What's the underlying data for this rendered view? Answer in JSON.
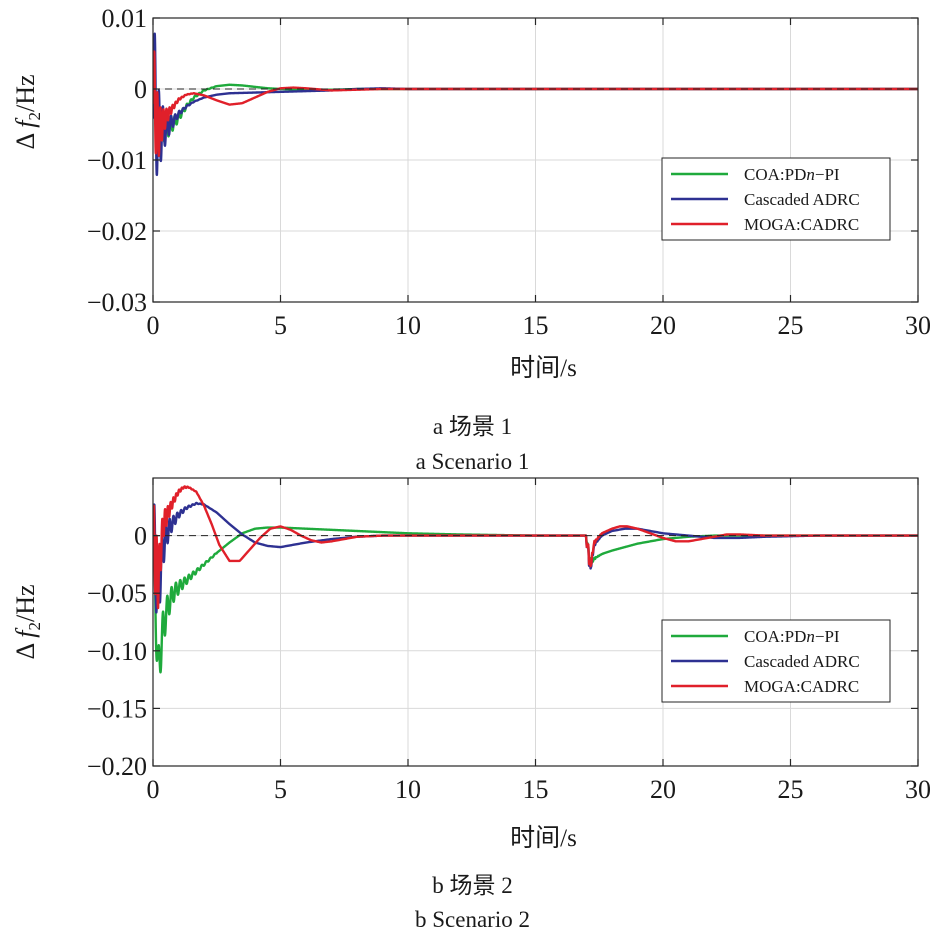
{
  "figure": {
    "panels": [
      {
        "caption_cn": "a  场景 1",
        "caption_en": "a  Scenario 1",
        "ylabel_delta": "Δ",
        "ylabel_f": "f",
        "ylabel_sub": "2",
        "ylabel_unit": "/Hz",
        "xlabel": "时间/s"
      },
      {
        "caption_cn": "b  场景 2",
        "caption_en": "b  Scenario 2",
        "ylabel_delta": "Δ",
        "ylabel_f": "f",
        "ylabel_sub": "2",
        "ylabel_unit": "/Hz",
        "xlabel": "时间/s"
      }
    ]
  },
  "chart_data": [
    {
      "type": "line",
      "xlabel": "时间/s",
      "ylabel": "Δf2/Hz",
      "xlim": [
        0,
        30
      ],
      "ylim": [
        -0.03,
        0.01
      ],
      "xticks": [
        0,
        5,
        10,
        15,
        20,
        25,
        30
      ],
      "xtick_labels": [
        "0",
        "5",
        "10",
        "15",
        "20",
        "25",
        "30"
      ],
      "yticks": [
        0.01,
        0,
        -0.01,
        -0.02,
        -0.03
      ],
      "ytick_labels": [
        "0.01",
        "0",
        "−0.01",
        "−0.02",
        "−0.03"
      ],
      "grid": true,
      "zero_line": true,
      "legend_position": "center-right",
      "series": [
        {
          "name": "COA:PDn−PI",
          "legend_parts": [
            "COA:PD",
            "n",
            "−PI"
          ],
          "color": "#1faa3c",
          "osc": {
            "amp": 0.0055,
            "period": 0.16,
            "decay": 0.45,
            "t0": 0.07
          },
          "x": [
            0,
            0.2,
            0.5,
            0.8,
            1.0,
            1.3,
            1.6,
            2.0,
            2.5,
            3.0,
            3.5,
            4.0,
            4.5,
            5.0,
            6.0,
            7.0,
            8.0,
            9.0,
            10,
            15,
            20,
            25,
            30
          ],
          "y": [
            0,
            -0.005,
            -0.0055,
            -0.0048,
            -0.004,
            -0.0025,
            -0.0012,
            -0.0002,
            0.0004,
            0.0006,
            0.0005,
            0.0003,
            0.0001,
            0.0,
            -0.0001,
            -0.0001,
            0.0,
            0.0,
            0.0,
            0.0,
            0.0,
            0.0,
            0.0
          ]
        },
        {
          "name": "Cascaded ADRC",
          "color": "#2e3192",
          "osc": {
            "amp": 0.013,
            "period": 0.16,
            "decay": 0.28,
            "t0": 0.05
          },
          "x": [
            0,
            0.2,
            0.5,
            0.8,
            1.0,
            1.3,
            1.6,
            2.0,
            2.5,
            3.0,
            4.0,
            5.0,
            6.0,
            7.0,
            8.0,
            9.0,
            10,
            15,
            20,
            25,
            30
          ],
          "y": [
            0,
            -0.006,
            -0.0055,
            -0.0045,
            -0.0035,
            -0.0025,
            -0.0018,
            -0.0012,
            -0.0008,
            -0.0006,
            -0.0005,
            -0.0004,
            -0.0003,
            -0.0002,
            0.0,
            0.0001,
            0.0,
            0.0,
            0.0,
            0.0,
            0.0
          ]
        },
        {
          "name": "MOGA:CADRC",
          "color": "#e0202a",
          "osc": {
            "amp": 0.009,
            "period": 0.12,
            "decay": 0.25,
            "t0": 0.04
          },
          "x": [
            0,
            0.2,
            0.5,
            0.8,
            1.0,
            1.3,
            1.6,
            2.0,
            2.5,
            3.0,
            3.5,
            4.0,
            4.5,
            5.0,
            5.5,
            6.0,
            7.0,
            8.0,
            9.0,
            10,
            15,
            20,
            25,
            30
          ],
          "y": [
            0,
            -0.006,
            -0.004,
            -0.0025,
            -0.0015,
            -0.0008,
            -0.0006,
            -0.0009,
            -0.0016,
            -0.0022,
            -0.002,
            -0.0012,
            -0.0004,
            0.0001,
            0.0002,
            0.0001,
            -0.0002,
            -0.0001,
            0.0,
            0.0,
            0.0,
            0.0,
            0.0,
            0.0
          ]
        }
      ]
    },
    {
      "type": "line",
      "xlabel": "时间/s",
      "ylabel": "Δf2/Hz",
      "xlim": [
        0,
        30
      ],
      "ylim": [
        -0.2,
        0.05
      ],
      "xticks": [
        0,
        5,
        10,
        15,
        20,
        25,
        30
      ],
      "xtick_labels": [
        "0",
        "5",
        "10",
        "15",
        "20",
        "25",
        "30"
      ],
      "yticks": [
        0,
        -0.05,
        -0.1,
        -0.15,
        -0.2
      ],
      "ytick_labels": [
        "0",
        "−0.05",
        "−0.10",
        "−0.15",
        "−0.20"
      ],
      "grid": true,
      "zero_line": true,
      "legend_position": "center-right",
      "series": [
        {
          "name": "COA:PDn−PI",
          "legend_parts": [
            "COA:PD",
            "n",
            "−PI"
          ],
          "color": "#1faa3c",
          "osc": {
            "amp": 0.03,
            "period": 0.17,
            "decay": 0.6,
            "t0": 0.08
          },
          "x": [
            0,
            0.2,
            0.4,
            0.6,
            0.8,
            1.0,
            1.5,
            2.0,
            2.5,
            3.0,
            3.5,
            4.0,
            4.5,
            5.0,
            6.0,
            8.0,
            10,
            12,
            15,
            17.0,
            17.15,
            17.3,
            17.6,
            18.0,
            18.5,
            19.0,
            19.5,
            20.0,
            21,
            22,
            24,
            26,
            30
          ],
          "y": [
            0,
            -0.12,
            -0.08,
            -0.06,
            -0.05,
            -0.045,
            -0.035,
            -0.025,
            -0.015,
            -0.006,
            0.002,
            0.006,
            0.007,
            0.007,
            0.006,
            0.004,
            0.002,
            0.001,
            0.0,
            0.0,
            -0.025,
            -0.02,
            -0.016,
            -0.013,
            -0.01,
            -0.007,
            -0.005,
            -0.003,
            -0.001,
            0.0,
            0.0,
            0.0,
            0.0
          ]
        },
        {
          "name": "Cascaded ADRC",
          "color": "#2e3192",
          "osc": {
            "amp": 0.05,
            "period": 0.15,
            "decay": 0.35,
            "t0": 0.06
          },
          "x": [
            0,
            0.2,
            0.4,
            0.6,
            0.8,
            1.0,
            1.3,
            1.7,
            2.0,
            2.5,
            3.0,
            3.5,
            4.0,
            4.5,
            5.0,
            5.5,
            6.0,
            7.0,
            8.0,
            9.0,
            10,
            12,
            15,
            17.0,
            17.15,
            17.3,
            17.6,
            18.0,
            18.5,
            19.0,
            19.5,
            20.0,
            21,
            22,
            23,
            24,
            26,
            30
          ],
          "y": [
            0,
            -0.05,
            -0.01,
            0.005,
            0.012,
            0.018,
            0.024,
            0.028,
            0.027,
            0.02,
            0.01,
            0.001,
            -0.006,
            -0.009,
            -0.01,
            -0.008,
            -0.006,
            -0.003,
            -0.001,
            0.0,
            0.0,
            0.0,
            0.0,
            0.0,
            -0.03,
            -0.008,
            0.0,
            0.004,
            0.006,
            0.006,
            0.004,
            0.002,
            0.0,
            -0.002,
            -0.002,
            -0.001,
            0.0,
            0.0
          ]
        },
        {
          "name": "MOGA:CADRC",
          "color": "#e0202a",
          "osc": {
            "amp": 0.045,
            "period": 0.11,
            "decay": 0.3,
            "t0": 0.05
          },
          "x": [
            0,
            0.2,
            0.4,
            0.6,
            0.8,
            1.0,
            1.2,
            1.4,
            1.7,
            2.0,
            2.3,
            2.6,
            3.0,
            3.4,
            3.8,
            4.2,
            4.6,
            5.0,
            5.4,
            5.8,
            6.2,
            6.6,
            7.0,
            7.5,
            8.0,
            9.0,
            10,
            12,
            15,
            17.0,
            17.15,
            17.3,
            17.6,
            18.0,
            18.3,
            18.6,
            19.0,
            19.5,
            20.0,
            20.5,
            21,
            21.5,
            22,
            22.5,
            23,
            24,
            26,
            30
          ],
          "y": [
            0,
            -0.04,
            0.01,
            0.02,
            0.03,
            0.038,
            0.042,
            0.042,
            0.038,
            0.026,
            0.01,
            -0.008,
            -0.022,
            -0.022,
            -0.012,
            -0.002,
            0.006,
            0.008,
            0.005,
            0.0,
            -0.004,
            -0.006,
            -0.005,
            -0.003,
            -0.001,
            0.0,
            0.0,
            0.0,
            0.0,
            0.0,
            -0.028,
            -0.006,
            0.002,
            0.006,
            0.008,
            0.008,
            0.006,
            0.002,
            -0.002,
            -0.005,
            -0.005,
            -0.003,
            -0.001,
            0.001,
            0.001,
            0.0,
            0.0,
            0.0
          ]
        }
      ]
    }
  ]
}
